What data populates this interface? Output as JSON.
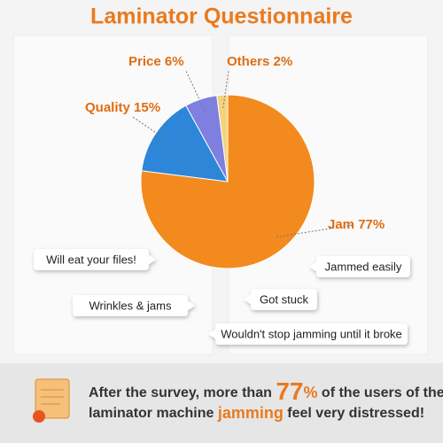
{
  "chart_data": {
    "type": "pie",
    "title": "Laminator Questionnaire",
    "categories": [
      "Jam",
      "Quality",
      "Price",
      "Others"
    ],
    "values": [
      77,
      15,
      6,
      2
    ],
    "value_labels": [
      "77%",
      "15%",
      "6%",
      "2%"
    ],
    "colors": [
      "#f28a1e",
      "#2d86d8",
      "#7f7fe0",
      "#f6d27c"
    ]
  },
  "comments": [
    "Will eat your files!",
    "Jammed easily",
    "Got stuck",
    "Wrinkles & jams",
    "Wouldn't stop jamming until it broke"
  ],
  "footer": {
    "parts": [
      "After the survey, more than ",
      "77",
      "%",
      " of the users of the",
      "laminator machine ",
      "jamming",
      " feel very distressed!"
    ]
  }
}
